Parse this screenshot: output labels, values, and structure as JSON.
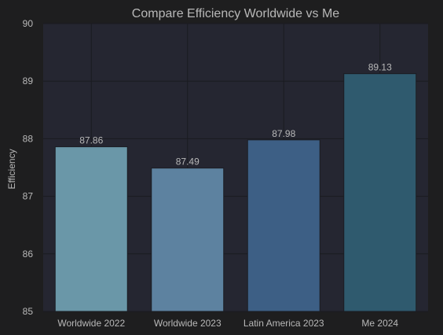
{
  "chart_data": {
    "type": "bar",
    "title": "Compare Efficiency Worldwide vs Me",
    "xlabel": "",
    "ylabel": "Efficiency",
    "categories": [
      "Worldwide 2022",
      "Worldwide 2023",
      "Latin America 2023",
      "Me 2024"
    ],
    "values": [
      87.86,
      87.49,
      87.98,
      89.13
    ],
    "value_labels": [
      "87.86",
      "87.49",
      "87.98",
      "89.13"
    ],
    "ylim": [
      85,
      90
    ],
    "yticks": [
      "85",
      "86",
      "87",
      "88",
      "89",
      "90"
    ],
    "grid": true,
    "legend": "none"
  },
  "colors": {
    "background": "#1e1e1f",
    "plot_background": "#252631",
    "grid": "#1a1b20",
    "text": "#b8b8b8",
    "bars": [
      "#6a97a8",
      "#5d82a0",
      "#3d5f85",
      "#2f5a6e"
    ]
  }
}
